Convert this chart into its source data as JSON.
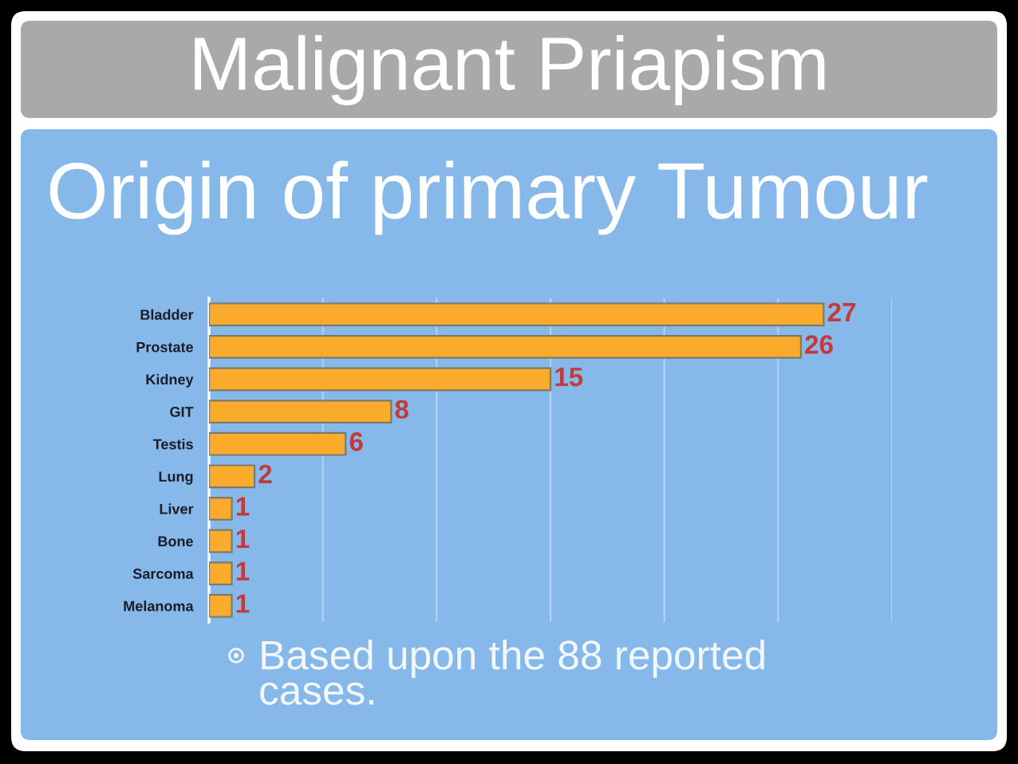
{
  "chart_data": {
    "type": "bar",
    "orientation": "horizontal",
    "title": "Malignant Priapism",
    "subtitle": "Origin of primary Tumour",
    "categories": [
      "Bladder",
      "Prostate",
      "Kidney",
      "GIT",
      "Testis",
      "Lung",
      "Liver",
      "Bone",
      "Sarcoma",
      "Melanoma"
    ],
    "values": [
      27,
      26,
      15,
      8,
      6,
      2,
      1,
      1,
      1,
      1
    ],
    "color": "#fbab2c",
    "data_labels": true,
    "xlim": [
      0,
      30
    ],
    "xticks": [
      {
        "value": 5,
        "label": null
      },
      {
        "value": 10,
        "label": null
      },
      {
        "value": 15,
        "label": null
      },
      {
        "value": 20,
        "label": null
      },
      {
        "value": 25,
        "label": null
      },
      {
        "value": 30,
        "label": null
      }
    ],
    "grid": "x",
    "tick_labels": "y",
    "annotations": [
      "Based upon the 88 reported cases."
    ]
  }
}
